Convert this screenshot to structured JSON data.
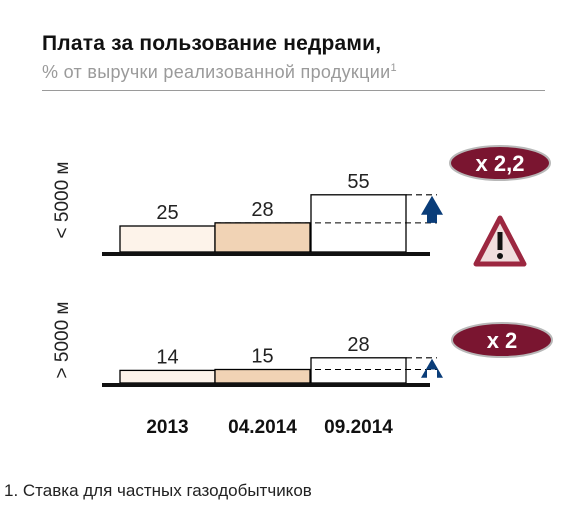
{
  "title": "Плата за пользование недрами,",
  "subtitle": "% от выручки реализованной продукции",
  "subtitle_note_marker": "1",
  "footnote": "1. Ставка для частных газодобытчиков",
  "colors": {
    "bar_2013": "#fdf3ea",
    "bar_04_2014": "#f1d3b5",
    "bar_09_2014": "#ffffff",
    "arrow": "#0a3d79",
    "badge": "#7a1530",
    "warning_border": "#9c2740",
    "warning_fill": "#f0dede"
  },
  "chart_data": [
    {
      "type": "bar",
      "group_label": "< 5000 м",
      "categories": [
        "2013",
        "04.2014",
        "09.2014"
      ],
      "values": [
        25,
        28,
        55
      ],
      "multiplier_label": "x 2,2",
      "has_warning_icon": true
    },
    {
      "type": "bar",
      "group_label": "> 5000 м",
      "categories": [
        "2013",
        "04.2014",
        "09.2014"
      ],
      "values": [
        14,
        15,
        28
      ],
      "multiplier_label": "x 2",
      "has_warning_icon": false
    }
  ]
}
